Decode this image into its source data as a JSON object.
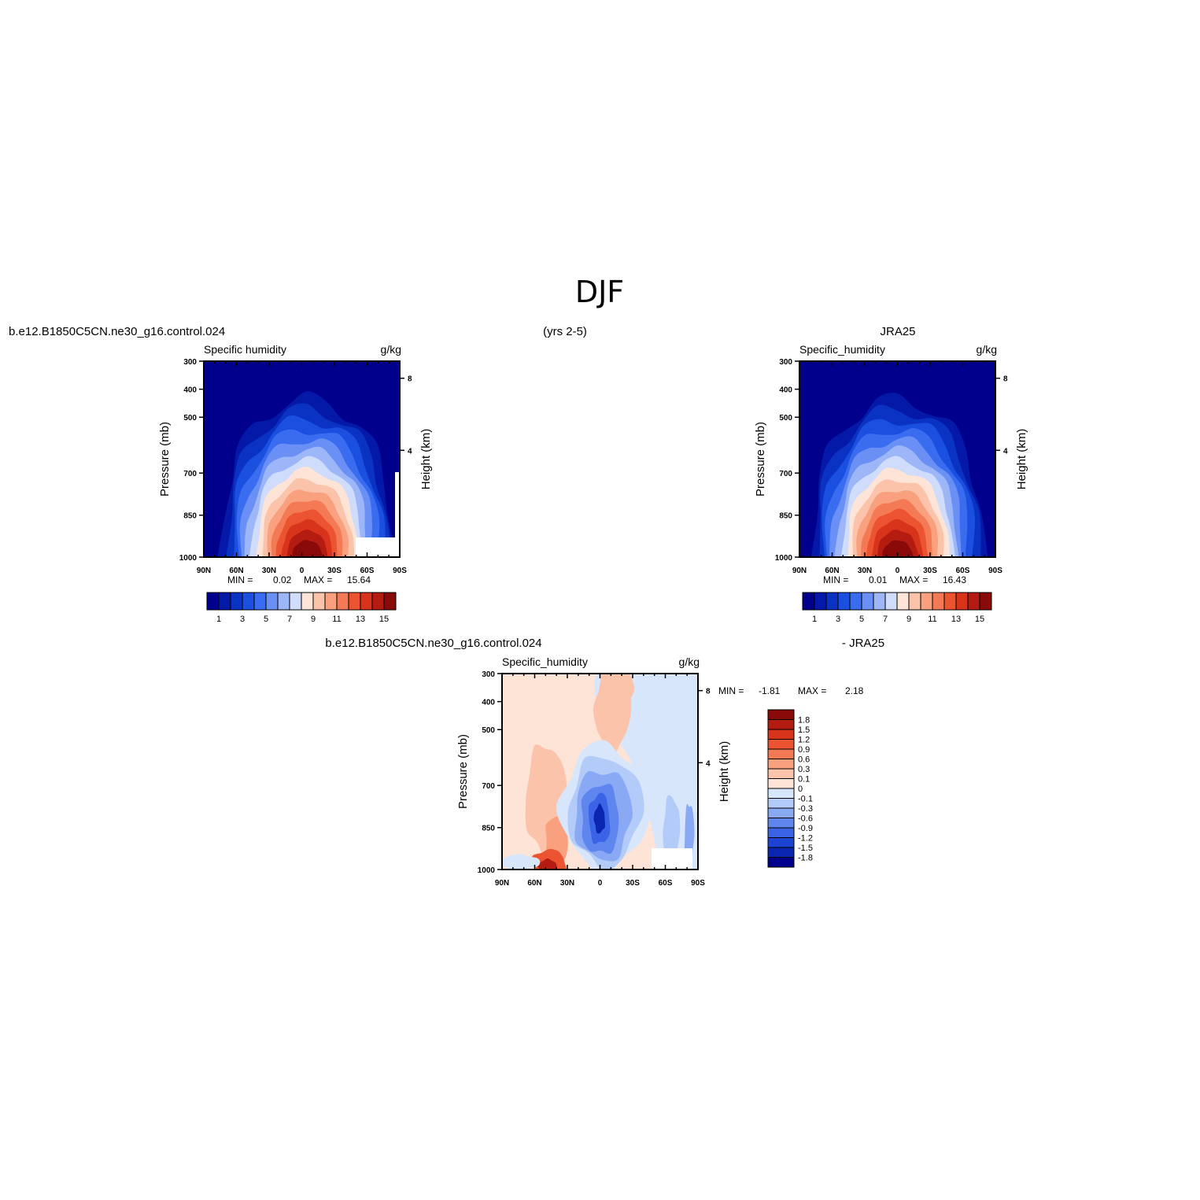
{
  "figure": {
    "title": "DJF",
    "subtitle_left": "b.e12.B1850C5CN.ne30_g16.control.024",
    "subtitle_center": "(yrs 2-5)",
    "subtitle_right": "JRA25",
    "diff_left": "b.e12.B1850C5CN.ne30_g16.control.024",
    "diff_right": "- JRA25"
  },
  "chart_data": [
    {
      "type": "heatmap",
      "panel": "model",
      "title": "Specific humidity",
      "units": "g/kg",
      "xlabel": "",
      "ylabel": "Pressure (mb)",
      "ylabel_right": "Height (km)",
      "x_ticks": [
        "90N",
        "60N",
        "30N",
        "0",
        "30S",
        "60S",
        "90S"
      ],
      "y_ticks": [
        "300",
        "400",
        "500",
        "700",
        "850",
        "1000"
      ],
      "right_ticks": [
        "8",
        "4"
      ],
      "min_label": "MIN =",
      "min": "0.02",
      "max_label": "MAX =",
      "max": "15.64",
      "colorbar_labels": [
        "1",
        "3",
        "5",
        "7",
        "9",
        "11",
        "13",
        "15"
      ],
      "peak_lat": 5,
      "peak_value": 15.64
    },
    {
      "type": "heatmap",
      "panel": "obs",
      "title": "Specific_humidity",
      "units": "g/kg",
      "xlabel": "",
      "ylabel": "Pressure (mb)",
      "ylabel_right": "Height (km)",
      "x_ticks": [
        "90N",
        "60N",
        "30N",
        "0",
        "30S",
        "60S",
        "90S"
      ],
      "y_ticks": [
        "300",
        "400",
        "500",
        "700",
        "850",
        "1000"
      ],
      "right_ticks": [
        "8",
        "4"
      ],
      "min_label": "MIN =",
      "min": "0.01",
      "max_label": "MAX =",
      "max": "16.43",
      "colorbar_labels": [
        "1",
        "3",
        "5",
        "7",
        "9",
        "11",
        "13",
        "15"
      ],
      "peak_lat": 0,
      "peak_value": 16.43
    },
    {
      "type": "heatmap",
      "panel": "diff",
      "title": "Specific_humidity",
      "units": "g/kg",
      "xlabel": "",
      "ylabel": "Pressure (mb)",
      "ylabel_right": "Height (km)",
      "x_ticks": [
        "90N",
        "60N",
        "30N",
        "0",
        "30S",
        "60S",
        "90S"
      ],
      "y_ticks": [
        "300",
        "400",
        "500",
        "700",
        "850",
        "1000"
      ],
      "right_ticks": [
        "8",
        "4"
      ],
      "min_label": "MIN =",
      "min": "-1.81",
      "max_label": "MAX =",
      "max": "2.18",
      "colorbar_labels": [
        "1.8",
        "1.5",
        "1.2",
        "0.9",
        "0.6",
        "0.3",
        "0.1",
        "0",
        "-0.1",
        "-0.3",
        "-0.6",
        "-0.9",
        "-1.2",
        "-1.5",
        "-1.8"
      ]
    }
  ],
  "colors": {
    "humidity_scale": [
      "#00008c",
      "#0419a7",
      "#0a33c3",
      "#1a4fe0",
      "#3a6cf0",
      "#6b90f5",
      "#9db6f8",
      "#cfdcfb",
      "#fde4d6",
      "#fbc4aa",
      "#f9a07e",
      "#f47a56",
      "#ec5330",
      "#d8341c",
      "#b41c12",
      "#8a0a0a"
    ],
    "diff_scale": [
      "#8a0a0a",
      "#b41c12",
      "#d8341c",
      "#ec5330",
      "#f47a56",
      "#f9a07e",
      "#fbc4aa",
      "#fde4d6",
      "#d8e6fb",
      "#b2cbf8",
      "#8aa9f4",
      "#5f86ef",
      "#3a63e6",
      "#1c43d4",
      "#0a26b0",
      "#00008c"
    ]
  }
}
